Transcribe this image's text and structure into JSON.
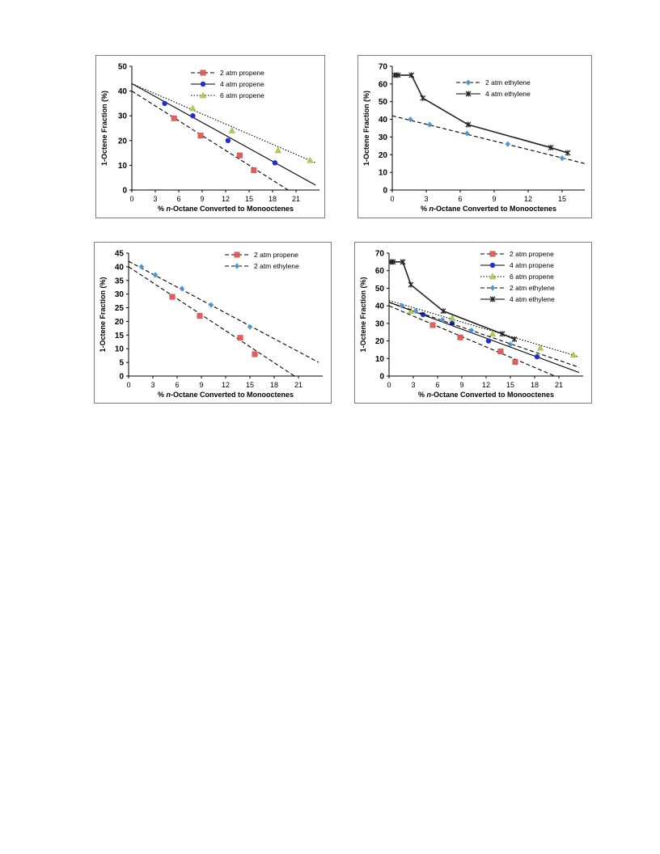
{
  "figure": {
    "background": "#ffffff",
    "frame_color": "#7f7f7f",
    "series_styles": {
      "2 atm propene": {
        "color": "#e0605e",
        "marker": "square",
        "line": "dash"
      },
      "4 atm propene": {
        "color": "#1f2fd0",
        "marker": "circle",
        "line": "solid"
      },
      "6 atm propene": {
        "color": "#a9d14f",
        "marker": "triangle",
        "line": "dot"
      },
      "2 atm ethylene": {
        "color": "#4f95d6",
        "marker": "diamond",
        "line": "dash"
      },
      "4 atm ethylene": {
        "color": "#222222",
        "marker": "star",
        "line": "solid"
      }
    }
  },
  "chart_data": [
    {
      "type": "scatter",
      "xlabel_parts": [
        "% ",
        "n",
        "-Octane Converted to Monooctenes"
      ],
      "ylabel": "1-Octene Fraction (%)",
      "xlim": [
        0,
        24
      ],
      "ylim": [
        0,
        50
      ],
      "xticks": [
        "0",
        "3",
        "6",
        "9",
        "12",
        "15",
        "18",
        "21"
      ],
      "yticks": [
        "0",
        "10",
        "20",
        "30",
        "40",
        "50"
      ],
      "legend": [
        "2 atm propene",
        "4 atm propene",
        "6 atm propene"
      ],
      "legend_position": "top-right",
      "series": [
        {
          "name": "2 atm propene",
          "x": [
            5.4,
            8.8,
            13.8,
            15.6
          ],
          "y": [
            29,
            22,
            14,
            8
          ],
          "trend": [
            [
              0,
              40
            ],
            [
              20,
              0
            ]
          ]
        },
        {
          "name": "4 atm propene",
          "x": [
            4.2,
            7.8,
            12.3,
            18.3
          ],
          "y": [
            35,
            30,
            20,
            11
          ],
          "trend": [
            [
              0,
              43
            ],
            [
              23.5,
              2
            ]
          ]
        },
        {
          "name": "6 atm propene",
          "x": [
            7.8,
            12.8,
            18.7,
            22.8
          ],
          "y": [
            33,
            24,
            16,
            12
          ],
          "trend": [
            [
              0,
              43
            ],
            [
              23.5,
              11
            ]
          ]
        }
      ]
    },
    {
      "type": "line",
      "xlabel_parts": [
        "% ",
        "n",
        "-Octane Converted to Monooctenes"
      ],
      "ylabel": "1-Octene Fraction (%)",
      "xlim": [
        0,
        17
      ],
      "ylim": [
        0,
        70
      ],
      "xticks": [
        "0",
        "3",
        "6",
        "9",
        "12",
        "15"
      ],
      "yticks": [
        "0",
        "10",
        "20",
        "30",
        "40",
        "50",
        "60",
        "70"
      ],
      "legend": [
        "2 atm ethylene",
        "4 atm ethylene"
      ],
      "legend_position": "top-right",
      "series": [
        {
          "name": "2 atm ethylene",
          "x": [
            1.6,
            3.3,
            6.6,
            10.2,
            15.0
          ],
          "y": [
            40,
            37,
            32,
            26,
            18
          ],
          "trend": [
            [
              0,
              42
            ],
            [
              17,
              15
            ]
          ]
        },
        {
          "name": "4 atm ethylene",
          "x": [
            0.2,
            0.5,
            1.7,
            2.7,
            6.7,
            14.0,
            15.5
          ],
          "y": [
            65,
            65,
            65,
            52,
            37,
            24,
            21
          ],
          "connected": true
        }
      ]
    },
    {
      "type": "scatter",
      "xlabel_parts": [
        "% ",
        "n",
        "-Octane Converted to Monooctenes"
      ],
      "ylabel": "1-Octene Fraction (%)",
      "xlim": [
        0,
        24
      ],
      "ylim": [
        0,
        45
      ],
      "xticks": [
        "0",
        "3",
        "6",
        "9",
        "12",
        "15",
        "18",
        "21"
      ],
      "yticks": [
        "0",
        "5",
        "10",
        "15",
        "20",
        "25",
        "30",
        "35",
        "40",
        "45"
      ],
      "legend": [
        "2 atm propene",
        "2 atm ethylene"
      ],
      "legend_position": "top-right",
      "series": [
        {
          "name": "2 atm propene",
          "x": [
            5.4,
            8.8,
            13.8,
            15.6
          ],
          "y": [
            29,
            22,
            14,
            8
          ],
          "trend": [
            [
              0,
              40
            ],
            [
              20.5,
              0
            ]
          ]
        },
        {
          "name": "2 atm ethylene",
          "x": [
            1.6,
            3.3,
            6.6,
            10.2,
            15.0
          ],
          "y": [
            40,
            37,
            32,
            26,
            18
          ],
          "trend": [
            [
              0,
              42
            ],
            [
              23.5,
              5
            ]
          ]
        }
      ]
    },
    {
      "type": "scatter",
      "xlabel_parts": [
        "% ",
        "n",
        "-Octane Converted to Monooctenes"
      ],
      "ylabel": "1-Octene Fraction (%)",
      "xlim": [
        0,
        24
      ],
      "ylim": [
        0,
        70
      ],
      "xticks": [
        "0",
        "3",
        "6",
        "9",
        "12",
        "15",
        "18",
        "21"
      ],
      "yticks": [
        "0",
        "10",
        "20",
        "30",
        "40",
        "50",
        "60",
        "70"
      ],
      "legend": [
        "2 atm propene",
        "4 atm propene",
        "6 atm propene",
        "2 atm ethylene",
        "4 atm ethylene"
      ],
      "legend_position": "top-right",
      "series": [
        {
          "name": "2 atm propene",
          "x": [
            5.4,
            8.8,
            13.8,
            15.6
          ],
          "y": [
            29,
            22,
            14,
            8
          ],
          "trend": [
            [
              0,
              40
            ],
            [
              20.5,
              0
            ]
          ]
        },
        {
          "name": "4 atm propene",
          "x": [
            4.2,
            7.8,
            12.3,
            18.3
          ],
          "y": [
            35,
            30,
            20,
            11
          ],
          "trend": [
            [
              0,
              42
            ],
            [
              23.5,
              2
            ]
          ]
        },
        {
          "name": "6 atm propene",
          "x": [
            2.7,
            7.8,
            12.8,
            18.7,
            22.8
          ],
          "y": [
            37,
            33,
            24,
            16,
            12
          ],
          "trend": [
            [
              0,
              43
            ],
            [
              23.5,
              11
            ]
          ]
        },
        {
          "name": "2 atm ethylene",
          "x": [
            1.6,
            3.3,
            6.6,
            10.2,
            15.0
          ],
          "y": [
            40,
            37,
            32,
            26,
            18
          ],
          "trend": [
            [
              0,
              42
            ],
            [
              23.5,
              5
            ]
          ]
        },
        {
          "name": "4 atm ethylene",
          "x": [
            0.2,
            0.5,
            1.7,
            2.7,
            6.7,
            14.0,
            15.5
          ],
          "y": [
            65,
            65,
            65,
            52,
            37,
            24,
            21
          ],
          "connected": true
        }
      ]
    }
  ]
}
